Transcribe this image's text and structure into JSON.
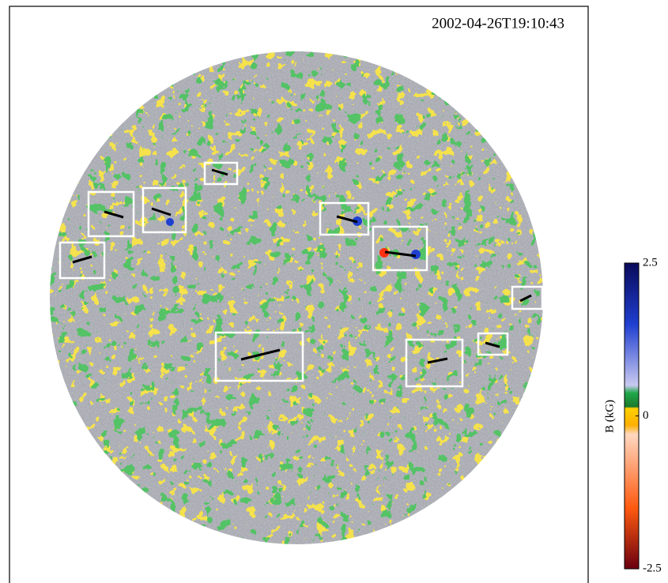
{
  "chart_data": {
    "type": "image",
    "title": "2002-04-26T19:10:43",
    "colorbar": {
      "label": "B (kG)",
      "clim": [
        -2.5,
        2.5
      ],
      "ticks": [
        2.5,
        0,
        -2.5
      ]
    }
  }
}
